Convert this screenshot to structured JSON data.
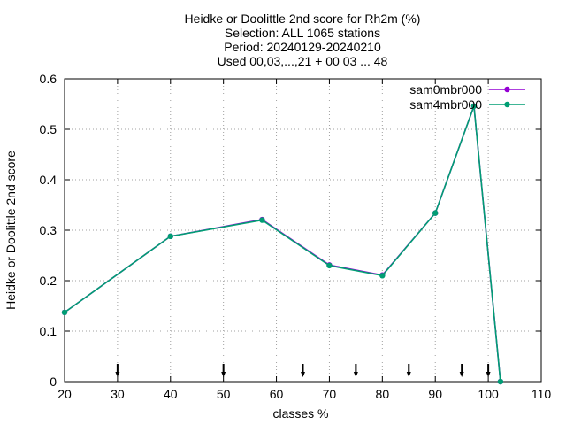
{
  "chart_data": {
    "type": "line",
    "title_lines": [
      "Heidke or Doolittle 2nd score  for Rh2m (%)",
      "Selection: ALL    1065 stations",
      "Period: 20240129-20240210",
      "Used 00,03,...,21 + 00 03 ... 48"
    ],
    "xlabel": "classes %",
    "ylabel": "Heidke or Doolittle 2nd score",
    "xlim": [
      20,
      110
    ],
    "ylim": [
      0,
      0.6
    ],
    "x_ticks": [
      20,
      30,
      40,
      50,
      60,
      70,
      80,
      90,
      100,
      110
    ],
    "y_ticks": [
      0,
      0.1,
      0.2,
      0.3,
      0.4,
      0.5,
      0.6
    ],
    "y_tick_labels": [
      "0",
      "0.1",
      "0.2",
      "0.3",
      "0.4",
      "0.5",
      "0.6"
    ],
    "grid": true,
    "legend_position": "top-right",
    "series": [
      {
        "name": "sam0mbr000",
        "color": "#9400d3",
        "x": [
          20,
          40,
          57.3,
          70,
          80,
          90,
          97.3,
          102.3
        ],
        "y": [
          0.137,
          0.288,
          0.321,
          0.231,
          0.211,
          0.334,
          0.546,
          0.0
        ]
      },
      {
        "name": "sam4mbr000",
        "color": "#009e73",
        "x": [
          20,
          40,
          57.3,
          70,
          80,
          90,
          97.3,
          102.3
        ],
        "y": [
          0.137,
          0.288,
          0.32,
          0.23,
          0.21,
          0.334,
          0.546,
          0.0
        ]
      }
    ],
    "class_markers_x": [
      30,
      50,
      65,
      75,
      85,
      95,
      100
    ]
  }
}
